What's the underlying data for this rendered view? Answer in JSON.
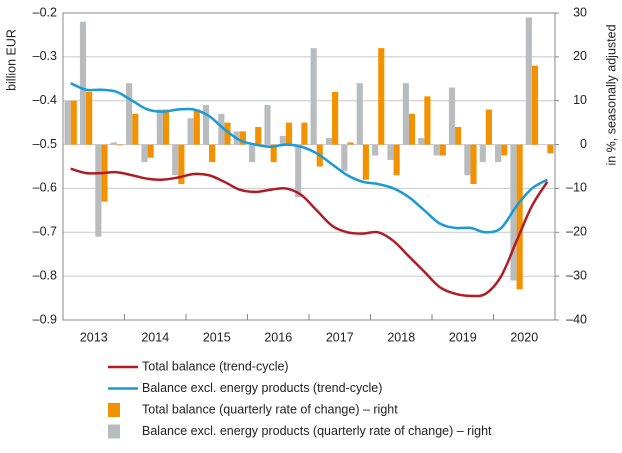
{
  "chart_data": {
    "type": "bar-line",
    "y_label": "billion EUR",
    "y2_label": "in %, seasonally adjusted",
    "categories": [
      null,
      "2013",
      null,
      null,
      null,
      "2014",
      null,
      null,
      null,
      "2015",
      null,
      null,
      null,
      "2016",
      null,
      null,
      null,
      "2017",
      null,
      null,
      null,
      "2018",
      null,
      null,
      null,
      "2019",
      null,
      null,
      null,
      "2020",
      null,
      null
    ],
    "ylim": [
      -0.9,
      -0.2
    ],
    "yticks": [
      {
        "value": -0.2,
        "label": "–0.2"
      },
      {
        "value": -0.3,
        "label": "–0.3"
      },
      {
        "value": -0.4,
        "label": "–0.4"
      },
      {
        "value": -0.5,
        "label": "–0.5"
      },
      {
        "value": -0.6,
        "label": "–0.6"
      },
      {
        "value": -0.7,
        "label": "–0.7"
      },
      {
        "value": -0.8,
        "label": "–0.8"
      },
      {
        "value": -0.9,
        "label": "–0.9"
      }
    ],
    "y2lim": [
      -40,
      30
    ],
    "y2ticks": [
      30,
      20,
      10,
      0,
      {
        "value": -10,
        "label": "–10"
      },
      {
        "value": -20,
        "label": "–20"
      },
      {
        "value": -30,
        "label": "–30"
      },
      {
        "value": -40,
        "label": "–40"
      }
    ],
    "grid": true,
    "series": [
      {
        "name": "Total balance (trend-cycle)",
        "kind": "line",
        "color": "#b01c24",
        "values": [
          -0.555,
          -0.565,
          -0.565,
          -0.563,
          -0.57,
          -0.578,
          -0.58,
          -0.575,
          -0.567,
          -0.57,
          -0.585,
          -0.603,
          -0.608,
          -0.603,
          -0.6,
          -0.615,
          -0.65,
          -0.685,
          -0.7,
          -0.703,
          -0.7,
          -0.72,
          -0.755,
          -0.79,
          -0.825,
          -0.84,
          -0.845,
          -0.84,
          -0.8,
          -0.72,
          -0.64,
          -0.585
        ]
      },
      {
        "name": "Balance excl. energy products (trend-cycle)",
        "kind": "line",
        "color": "#1a9ad6",
        "values": [
          -0.36,
          -0.375,
          -0.375,
          -0.38,
          -0.4,
          -0.42,
          -0.425,
          -0.42,
          -0.42,
          -0.435,
          -0.465,
          -0.49,
          -0.5,
          -0.505,
          -0.5,
          -0.505,
          -0.52,
          -0.545,
          -0.57,
          -0.585,
          -0.59,
          -0.6,
          -0.62,
          -0.65,
          -0.68,
          -0.69,
          -0.69,
          -0.7,
          -0.69,
          -0.64,
          -0.6,
          -0.58
        ]
      },
      {
        "name": "Total balance (quarterly rate of change) – right",
        "kind": "bar",
        "axis": "y2",
        "color": "#f39200",
        "values": [
          10,
          12,
          -13,
          0,
          7,
          -3,
          8,
          -9,
          8,
          -4,
          5,
          3,
          4,
          -4,
          5,
          5,
          -5,
          12,
          0.5,
          -8,
          22,
          -7,
          7,
          11,
          -2.5,
          4,
          -9,
          8,
          -2.5,
          -33,
          18,
          -2
        ]
      },
      {
        "name": "Balance excl. energy products (quarterly rate of change) – right",
        "kind": "bar",
        "axis": "y2",
        "color": "#b8bcbf",
        "values": [
          10,
          28,
          -21,
          0.5,
          14,
          -4,
          8,
          -7,
          6,
          9,
          7,
          3,
          -4,
          9,
          2,
          -12,
          22,
          1.5,
          -6,
          14,
          -2.5,
          -3.5,
          14,
          1.5,
          -2.5,
          13,
          -7,
          -4,
          -4,
          -31,
          29,
          null
        ]
      }
    ]
  }
}
